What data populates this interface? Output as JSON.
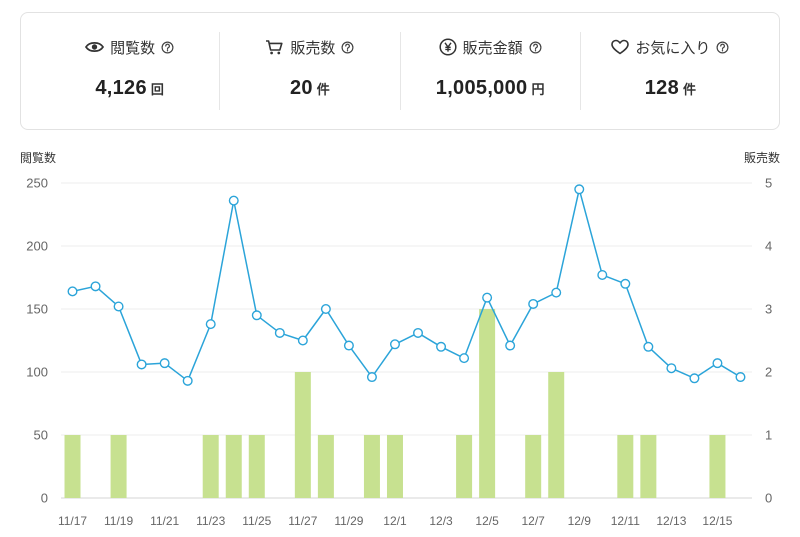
{
  "stats": [
    {
      "icon": "eye-icon",
      "label": "閲覧数",
      "value": "4,126",
      "unit": "回"
    },
    {
      "icon": "cart-icon",
      "label": "販売数",
      "value": "20",
      "unit": "件"
    },
    {
      "icon": "yen-circle-icon",
      "label": "販売金額",
      "value": "1,005,000",
      "unit": "円"
    },
    {
      "icon": "heart-icon",
      "label": "お気に入り",
      "value": "128",
      "unit": "件"
    }
  ],
  "chart_data": {
    "type": "bar",
    "categories": [
      "11/17",
      "11/18",
      "11/19",
      "11/20",
      "11/21",
      "11/22",
      "11/23",
      "11/24",
      "11/25",
      "11/26",
      "11/27",
      "11/28",
      "11/29",
      "11/30",
      "12/1",
      "12/2",
      "12/3",
      "12/4",
      "12/5",
      "12/6",
      "12/7",
      "12/8",
      "12/9",
      "12/10",
      "12/11",
      "12/12",
      "12/13",
      "12/14",
      "12/15",
      "12/16"
    ],
    "x_tick_label_step": 2,
    "series": [
      {
        "type": "line",
        "axis": "left",
        "values": [
          164,
          168,
          152,
          106,
          107,
          93,
          138,
          236,
          145,
          131,
          125,
          150,
          121,
          96,
          122,
          131,
          120,
          111,
          159,
          121,
          154,
          163,
          245,
          177,
          170,
          120,
          103,
          95,
          107,
          96
        ]
      },
      {
        "type": "bar",
        "axis": "right",
        "values": [
          1,
          0,
          1,
          0,
          0,
          0,
          1,
          1,
          1,
          0,
          2,
          1,
          0,
          1,
          1,
          0,
          0,
          1,
          3,
          0,
          1,
          2,
          0,
          0,
          1,
          1,
          0,
          0,
          1,
          0
        ]
      }
    ],
    "ylabel": "閲覧数",
    "y2label": "販売数",
    "ylim": [
      0,
      250
    ],
    "yticks": [
      0,
      50,
      100,
      150,
      200,
      250
    ],
    "y2lim": [
      0,
      5
    ],
    "y2ticks": [
      0,
      1,
      2,
      3,
      4,
      5
    ],
    "grid": true,
    "legend": "none",
    "colors": {
      "line": "#2ba4d9",
      "bar": "#c7e190",
      "grid": "#ececec",
      "baseline": "#d6d6d6"
    }
  }
}
